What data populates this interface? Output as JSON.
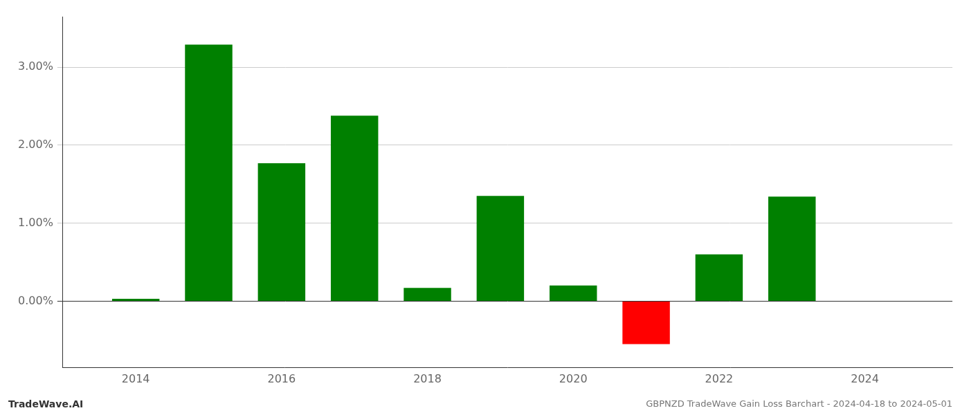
{
  "chart_data": {
    "type": "bar",
    "title": "GBPNZD TradeWave Gain Loss Barchart - 2024-04-18 to 2024-05-01",
    "annotations": [
      {
        "text": "TradeWave.AI"
      }
    ],
    "x": [
      2014,
      2015,
      2016,
      2017,
      2018,
      2019,
      2020,
      2021,
      2022,
      2023
    ],
    "values": [
      0.03,
      3.29,
      1.77,
      2.38,
      0.17,
      1.35,
      0.2,
      -0.55,
      0.6,
      1.34
    ],
    "colors": [
      "#008000",
      "#008000",
      "#008000",
      "#008000",
      "#008000",
      "#008000",
      "#008000",
      "#ff0000",
      "#008000",
      "#008000"
    ],
    "xlim": [
      2013.0,
      2025.2
    ],
    "xticks": [
      2014,
      2016,
      2018,
      2020,
      2022,
      2024
    ],
    "ylim": [
      -0.85,
      3.65
    ],
    "yticks": [
      {
        "value": 0.0,
        "label": "0.00%"
      },
      {
        "value": 1.0,
        "label": "1.00%"
      },
      {
        "value": 2.0,
        "label": "2.00%"
      },
      {
        "value": 3.0,
        "label": "3.00%"
      }
    ],
    "grid": "y"
  }
}
